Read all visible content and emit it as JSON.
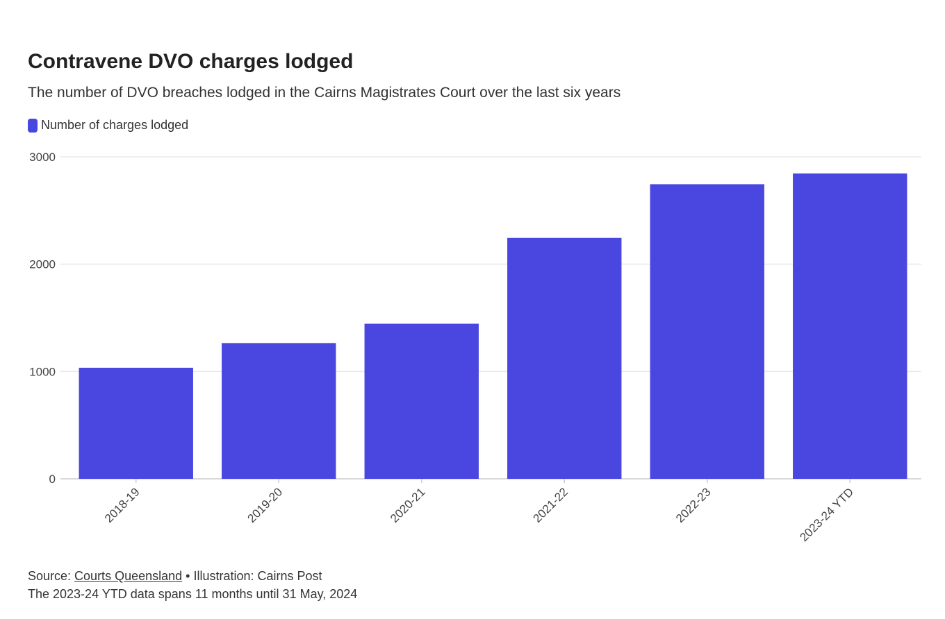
{
  "chart_data": {
    "type": "bar",
    "title": "Contravene DVO charges lodged",
    "subtitle": "The number of DVO breaches lodged in the Cairns Magistrates Court over the last six years",
    "legend": [
      {
        "name": "Number of charges lodged",
        "color": "#4a47e1"
      }
    ],
    "legend_placement": "top-left",
    "categories": [
      "2018-19",
      "2019-20",
      "2020-21",
      "2021-22",
      "2022-23",
      "2023-24 YTD"
    ],
    "series": [
      {
        "name": "Number of charges lodged",
        "values": [
          1035,
          1265,
          1445,
          2245,
          2745,
          2845
        ]
      }
    ],
    "yticks": [
      "0",
      "1000",
      "2000",
      "3000"
    ],
    "ylim": [
      0,
      3000
    ],
    "grid": true,
    "bar_color": "#4a47e1"
  },
  "footer": {
    "source_prefix": "Source: ",
    "source_link": "Courts Queensland",
    "source_suffix": " • Illustration: Cairns Post",
    "note": "The 2023-24 YTD data spans 11 months until 31 May, 2024"
  }
}
